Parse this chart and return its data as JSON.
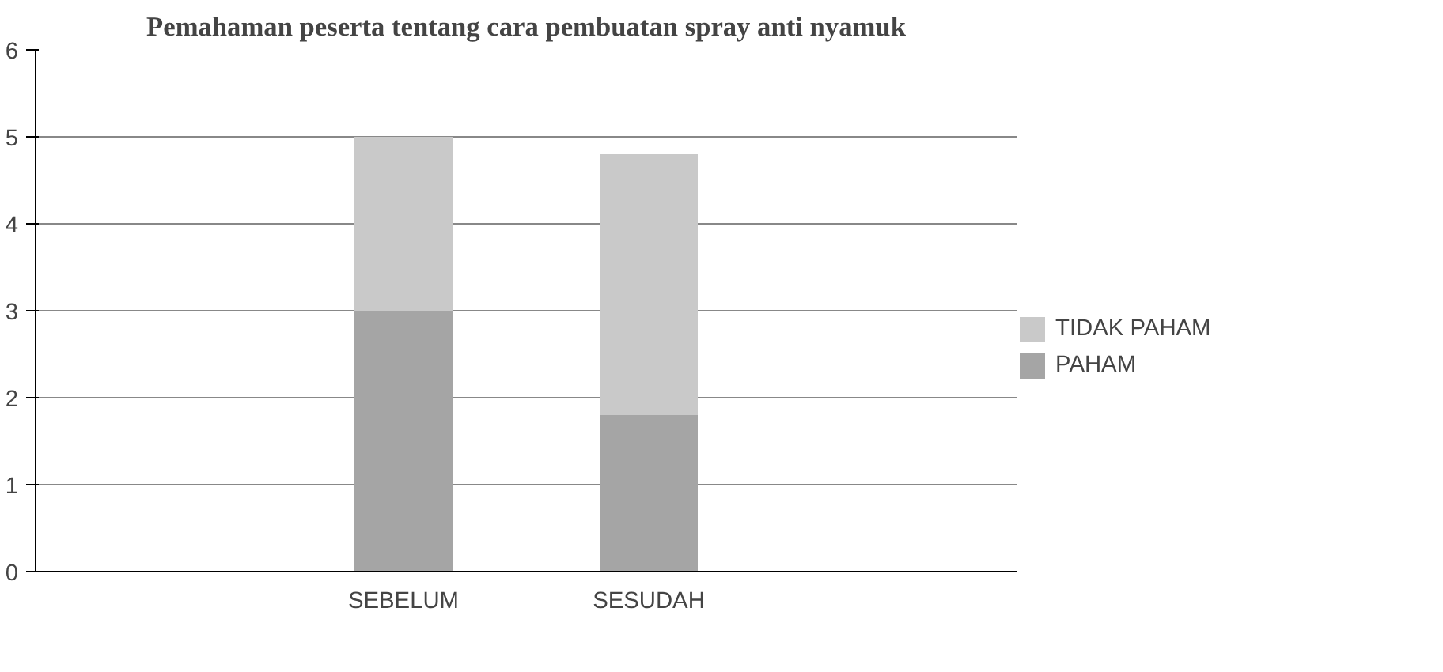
{
  "chart_data": {
    "type": "bar",
    "stacked": true,
    "title": "Pemahaman peserta tentang cara pembuatan spray anti nyamuk",
    "categories": [
      null,
      "SEBELUM",
      "SESUDAH",
      null
    ],
    "series": [
      {
        "name": "PAHAM",
        "color": "#a5a5a5",
        "values": [
          null,
          3,
          1.8,
          null
        ]
      },
      {
        "name": "TIDAK PAHAM",
        "color": "#c9c9c9",
        "values": [
          null,
          2,
          3.0,
          null
        ]
      }
    ],
    "ylim": [
      0,
      6
    ],
    "yticks": [
      0,
      1,
      2,
      3,
      4,
      5,
      6
    ],
    "grid": "y",
    "legend": "right"
  }
}
